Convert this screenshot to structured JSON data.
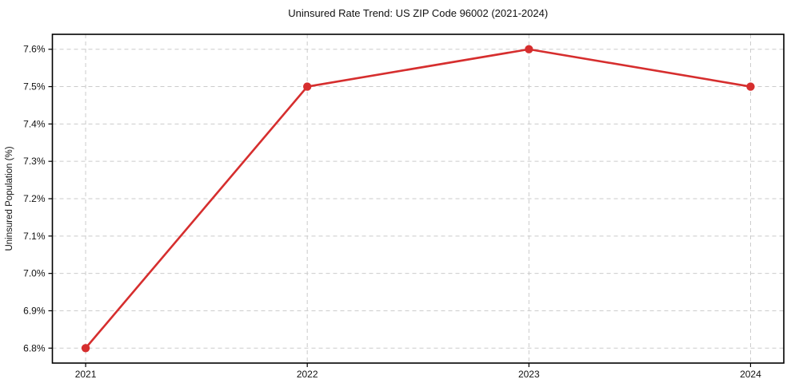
{
  "chart_data": {
    "type": "line",
    "title": "Uninsured Rate Trend: US ZIP Code 96002 (2021-2024)",
    "xlabel": "",
    "ylabel": "Uninsured Population (%)",
    "x": [
      2021,
      2022,
      2023,
      2024
    ],
    "x_tick_labels": [
      "2021",
      "2022",
      "2023",
      "2024"
    ],
    "series": [
      {
        "name": "Uninsured Population (%)",
        "values": [
          6.8,
          7.5,
          7.6,
          7.5
        ],
        "color": "#d62e2e",
        "marker": "circle"
      }
    ],
    "y_ticks": [
      6.8,
      6.9,
      7.0,
      7.1,
      7.2,
      7.3,
      7.4,
      7.5,
      7.6
    ],
    "y_tick_labels": [
      "6.8%",
      "6.9%",
      "7.0%",
      "7.1%",
      "7.2%",
      "7.3%",
      "7.4%",
      "7.5%",
      "7.6%"
    ],
    "xlim": [
      2020.85,
      2024.15
    ],
    "ylim": [
      6.76,
      7.64
    ],
    "grid": true,
    "grid_style": "dashed",
    "legend": "none",
    "colors": {
      "line": "#d62e2e",
      "marker": "#d62e2e",
      "grid": "#cbcbcb",
      "axis": "#000000",
      "text": "#111111",
      "background": "#ffffff"
    }
  }
}
